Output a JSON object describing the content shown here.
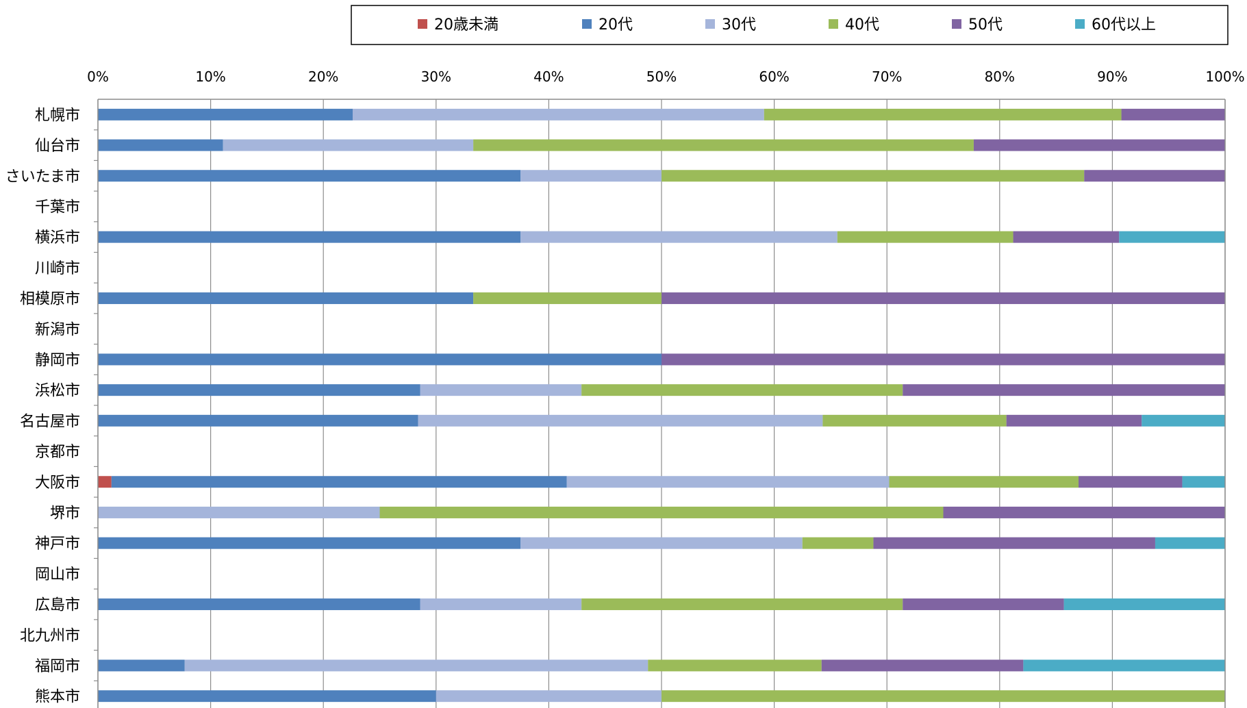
{
  "chart_data": {
    "type": "bar",
    "orientation": "horizontal",
    "stacked": true,
    "percent_stacked": true,
    "title": "",
    "xlabel": "",
    "ylabel": "",
    "xlim": [
      0,
      100
    ],
    "x_ticks": [
      "0%",
      "10%",
      "20%",
      "30%",
      "40%",
      "50%",
      "60%",
      "70%",
      "80%",
      "90%",
      "100%"
    ],
    "grid": true,
    "legend_position": "top",
    "categories": [
      "札幌市",
      "仙台市",
      "さいたま市",
      "千葉市",
      "横浜市",
      "川崎市",
      "相模原市",
      "新潟市",
      "静岡市",
      "浜松市",
      "名古屋市",
      "京都市",
      "大阪市",
      "堺市",
      "神戸市",
      "岡山市",
      "広島市",
      "北九州市",
      "福岡市",
      "熊本市"
    ],
    "series": [
      {
        "name": "20歳未満",
        "color": "#c0504d",
        "values": [
          0,
          0,
          0,
          0,
          0,
          0,
          0,
          0,
          0,
          0,
          0,
          0,
          1.2,
          0,
          0,
          0,
          0,
          0,
          0,
          0
        ]
      },
      {
        "name": "20代",
        "color": "#4f81bd",
        "values": [
          22.6,
          11.1,
          37.5,
          0,
          37.5,
          0,
          33.3,
          0,
          50.0,
          28.6,
          28.4,
          0,
          40.4,
          0,
          37.5,
          0,
          28.6,
          0,
          7.7,
          30.0
        ]
      },
      {
        "name": "30代",
        "color": "#a5b5db",
        "values": [
          36.5,
          22.2,
          12.5,
          0,
          28.1,
          0,
          0,
          0,
          0,
          14.3,
          35.9,
          0,
          28.6,
          25.0,
          25.0,
          0,
          14.3,
          0,
          41.1,
          20.0
        ]
      },
      {
        "name": "40代",
        "color": "#9bbb59",
        "values": [
          31.7,
          44.4,
          37.5,
          0,
          15.6,
          0,
          16.7,
          0,
          0,
          28.5,
          16.3,
          0,
          16.8,
          50.0,
          6.3,
          0,
          28.5,
          0,
          15.4,
          50.0
        ]
      },
      {
        "name": "50代",
        "color": "#8064a2",
        "values": [
          9.2,
          22.3,
          12.5,
          0,
          9.4,
          0,
          50.0,
          0,
          50.0,
          28.6,
          12.0,
          0,
          9.2,
          25.0,
          25.0,
          0,
          14.3,
          0,
          17.9,
          0
        ]
      },
      {
        "name": "60代以上",
        "color": "#4bacc6",
        "values": [
          0,
          0,
          0,
          0,
          9.4,
          0,
          0,
          0,
          0,
          0,
          7.4,
          0,
          3.8,
          0,
          6.2,
          0,
          14.3,
          0,
          17.9,
          0
        ]
      }
    ]
  }
}
